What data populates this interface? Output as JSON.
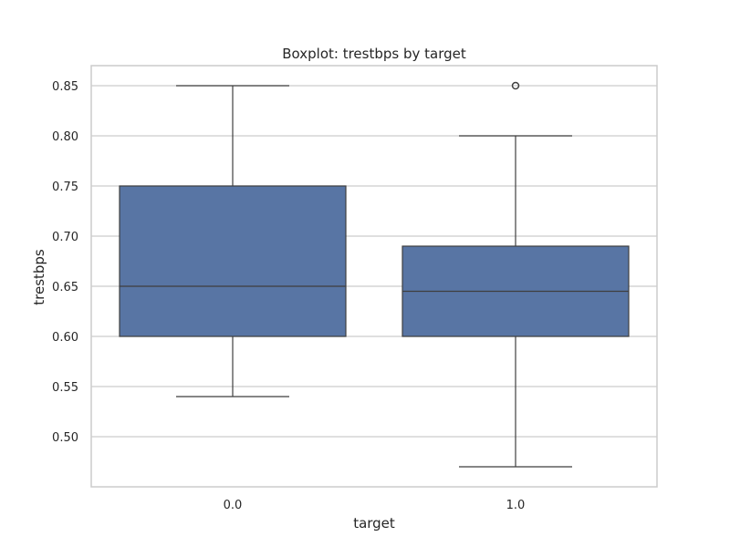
{
  "chart_data": {
    "type": "boxplot",
    "title": "Boxplot: trestbps by target",
    "xlabel": "target",
    "ylabel": "trestbps",
    "ylim": [
      0.45,
      0.87
    ],
    "yticks": [
      "0.50",
      "0.55",
      "0.60",
      "0.65",
      "0.70",
      "0.75",
      "0.80",
      "0.85"
    ],
    "grid": true,
    "boxes": [
      {
        "category": "0.0",
        "whisker_low": 0.54,
        "q1": 0.6,
        "median": 0.65,
        "q3": 0.75,
        "whisker_high": 0.85,
        "outliers": []
      },
      {
        "category": "1.0",
        "whisker_low": 0.47,
        "q1": 0.6,
        "median": 0.645,
        "q3": 0.69,
        "whisker_high": 0.8,
        "outliers": [
          0.85
        ]
      }
    ],
    "colors": {
      "box_fill": "#5875a4",
      "line": "#3f3f3f",
      "grid": "#cccccc",
      "text": "#262626"
    }
  }
}
